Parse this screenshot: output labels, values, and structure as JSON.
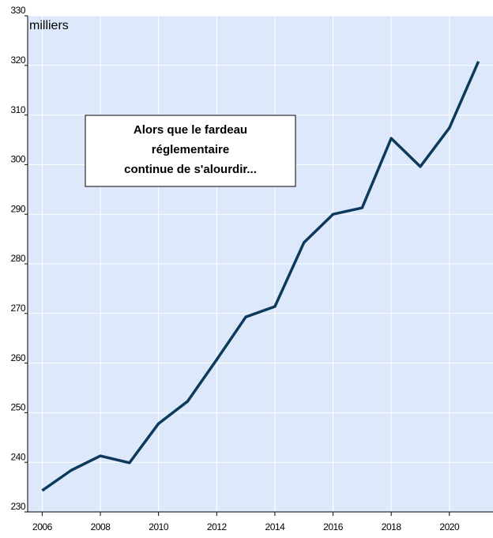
{
  "chart_data": {
    "type": "line",
    "y_label": "milliers",
    "annotation": [
      "Alors que le fardeau",
      "réglementaire",
      "continue de s'alourdir..."
    ],
    "x": [
      2006,
      2007,
      2008,
      2009,
      2010,
      2011,
      2012,
      2013,
      2014,
      2015,
      2016,
      2017,
      2018,
      2019,
      2020,
      2021
    ],
    "series": [
      {
        "color": "#0d3a5c",
        "values": [
          234.3,
          238.4,
          241.3,
          239.9,
          247.8,
          252.3,
          260.7,
          269.3,
          271.4,
          284.3,
          290.0,
          291.3,
          305.3,
          299.6,
          307.4,
          320.8
        ]
      }
    ],
    "xlim": [
      2005.5,
      2021.5
    ],
    "xticks": [
      2006,
      2008,
      2010,
      2012,
      2014,
      2016,
      2018,
      2020
    ],
    "ylim": [
      230,
      330
    ],
    "yticks": [
      230,
      240,
      250,
      260,
      270,
      280,
      290,
      300,
      310,
      320,
      330
    ],
    "grid": true,
    "background": "#dde9fb"
  }
}
